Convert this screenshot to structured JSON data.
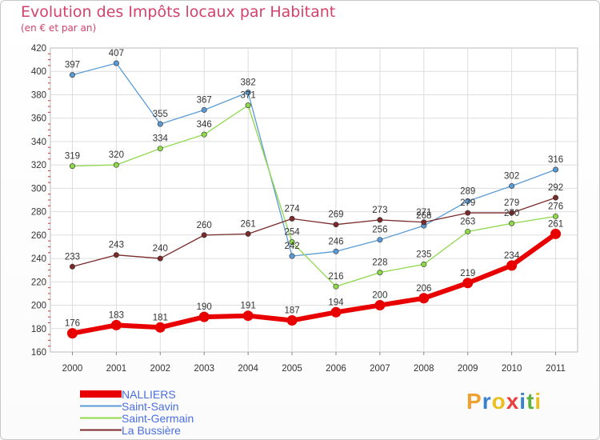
{
  "title": "Evolution des Impôts locaux par Habitant",
  "subtitle": "(en € et par an)",
  "logo": {
    "letters": [
      "P",
      "r",
      "o",
      "x",
      "i",
      "t",
      "i"
    ],
    "colors": [
      "#f0a030",
      "#3a80d0",
      "#e8c020",
      "#e84040",
      "#3a80d0",
      "#60b040",
      "#e8c020"
    ]
  },
  "chart_data": {
    "type": "line",
    "x": [
      "2000",
      "2001",
      "2002",
      "2003",
      "2004",
      "2005",
      "2006",
      "2007",
      "2008",
      "2009",
      "2010",
      "2011"
    ],
    "ylim": [
      160,
      420
    ],
    "yticks": [
      "160",
      "180",
      "200",
      "220",
      "240",
      "260",
      "280",
      "300",
      "320",
      "340",
      "360",
      "380",
      "400",
      "420"
    ],
    "grid": true,
    "legend_position": "bottom-left",
    "series": [
      {
        "name": "NALLIERS",
        "color": "#e80000",
        "emphasis": true,
        "values": [
          176,
          183,
          181,
          190,
          191,
          187,
          194,
          200,
          206,
          219,
          234,
          261
        ],
        "labels": [
          "176",
          "183",
          "181",
          "190",
          "191",
          "187",
          "194",
          "200",
          "206",
          "219",
          "234",
          "261"
        ]
      },
      {
        "name": "Saint-Savin",
        "color": "#5b9bd5",
        "emphasis": false,
        "values": [
          397,
          407,
          355,
          367,
          382,
          242,
          246,
          256,
          268,
          289,
          302,
          316
        ],
        "labels": [
          "397",
          "407",
          "355",
          "367",
          "382",
          "242",
          "246",
          "256",
          "268",
          "289",
          "302",
          "316"
        ]
      },
      {
        "name": "Saint-Germain",
        "color": "#8ed84a",
        "emphasis": false,
        "values": [
          319,
          320,
          334,
          346,
          371,
          254,
          216,
          228,
          235,
          263,
          270,
          276
        ],
        "labels": [
          "319",
          "320",
          "334",
          "346",
          "371",
          "254",
          "216",
          "228",
          "235",
          "263",
          "270",
          "276"
        ]
      },
      {
        "name": "La Bussière",
        "color": "#7a2a2a",
        "emphasis": false,
        "values": [
          233,
          243,
          240,
          260,
          261,
          274,
          269,
          273,
          271,
          279,
          279,
          292
        ],
        "labels": [
          "233",
          "243",
          "240",
          "260",
          "261",
          "274",
          "269",
          "273",
          "271",
          "279",
          "279",
          "292"
        ]
      }
    ]
  }
}
